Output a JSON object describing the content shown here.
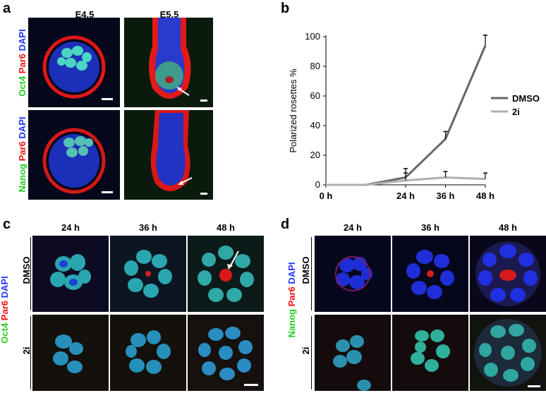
{
  "panels": {
    "a": {
      "label": "a",
      "columns": [
        "E4.5",
        "E5.5"
      ],
      "rows": [
        {
          "stain": [
            {
              "text": "Oct4",
              "color": "#22cc22"
            },
            {
              "text": "Par6",
              "color": "#ee1111"
            },
            {
              "text": "DAPI",
              "color": "#2233ff"
            }
          ]
        },
        {
          "stain": [
            {
              "text": "Nanog",
              "color": "#22cc22"
            },
            {
              "text": "Par6",
              "color": "#ee1111"
            },
            {
              "text": "DAPI",
              "color": "#2233ff"
            }
          ]
        }
      ]
    },
    "b": {
      "label": "b"
    },
    "c": {
      "label": "c",
      "columns": [
        "24 h",
        "36 h",
        "48 h"
      ],
      "rows": [
        "DMSO",
        "2i"
      ],
      "stain": [
        {
          "text": "Oct4",
          "color": "#22cc22"
        },
        {
          "text": "Par6",
          "color": "#ee1111"
        },
        {
          "text": "DAPI",
          "color": "#2233ff"
        }
      ]
    },
    "d": {
      "label": "d",
      "columns": [
        "24 h",
        "36 h",
        "48 h"
      ],
      "rows": [
        "DMSO",
        "2i"
      ],
      "stain": [
        {
          "text": "Nanog",
          "color": "#22cc22"
        },
        {
          "text": "Par6",
          "color": "#ee1111"
        },
        {
          "text": "DAPI",
          "color": "#2233ff"
        }
      ]
    }
  },
  "chart_data": {
    "type": "line",
    "ylabel": "Polarized rosettes %",
    "ylim": [
      0,
      100
    ],
    "yticks": [
      0,
      20,
      40,
      60,
      80,
      100
    ],
    "categories": [
      "0 h",
      "24 h",
      "36 h",
      "48 h"
    ],
    "legend_position": "right",
    "series": [
      {
        "name": "DMSO",
        "color": "#666666",
        "x": [
          "0 h",
          "12 h",
          "24 h",
          "36 h",
          "48 h"
        ],
        "values": [
          0,
          0,
          5,
          31,
          94
        ],
        "errors": [
          0,
          0,
          6,
          5,
          7
        ]
      },
      {
        "name": "2i",
        "color": "#b0b0b0",
        "x": [
          "0 h",
          "12 h",
          "24 h",
          "36 h",
          "48 h"
        ],
        "values": [
          0,
          0,
          3,
          5,
          4
        ],
        "errors": [
          0,
          0,
          5,
          4,
          4
        ]
      }
    ]
  }
}
